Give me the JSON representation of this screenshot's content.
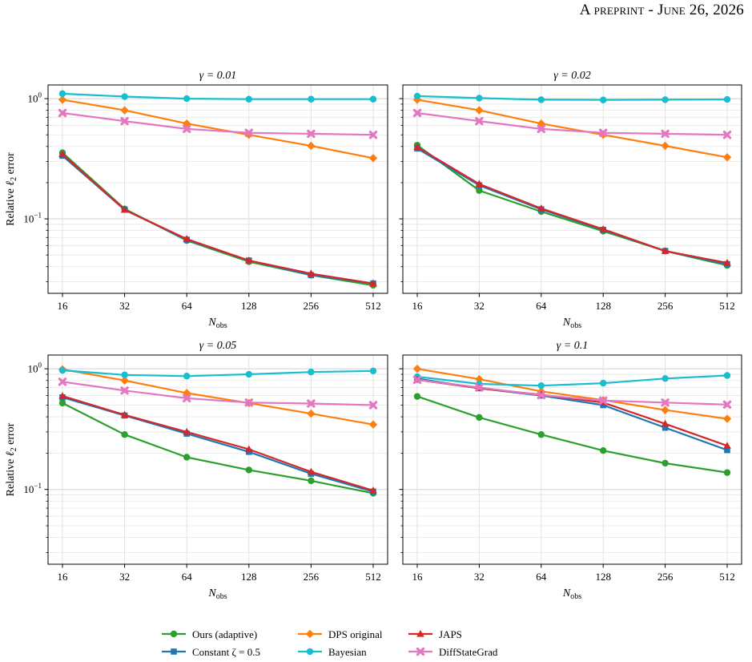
{
  "header": {
    "text": "A preprint - June 26, 2026"
  },
  "chart_data": [
    {
      "type": "line",
      "title": "γ = 0.01",
      "xlabel": "N_obs",
      "ylabel": "Relative ℓ2 error",
      "xscale": "log2",
      "yscale": "log",
      "x": [
        16,
        32,
        64,
        128,
        256,
        512
      ],
      "series": [
        {
          "name": "Ours (adaptive)",
          "color": "#2ca02c",
          "marker": "circle",
          "values": [
            0.355,
            0.121,
            0.066,
            0.044,
            0.034,
            0.028
          ]
        },
        {
          "name": "Constant ζ = 0.5",
          "color": "#1f77b4",
          "marker": "square",
          "values": [
            0.335,
            0.119,
            0.067,
            0.045,
            0.034,
            0.029
          ]
        },
        {
          "name": "DPS original",
          "color": "#ff7f0e",
          "marker": "diamond",
          "values": [
            0.98,
            0.8,
            0.62,
            0.5,
            0.405,
            0.32
          ]
        },
        {
          "name": "Bayesian",
          "color": "#17becf",
          "marker": "circle",
          "values": [
            1.1,
            1.04,
            1.0,
            0.99,
            0.99,
            0.99
          ]
        },
        {
          "name": "JAPS",
          "color": "#d62728",
          "marker": "triangle",
          "values": [
            0.345,
            0.119,
            0.068,
            0.045,
            0.035,
            0.029
          ]
        },
        {
          "name": "DiffStateGrad",
          "color": "#e377c2",
          "marker": "x",
          "values": [
            0.76,
            0.65,
            0.56,
            0.52,
            0.51,
            0.5
          ]
        }
      ],
      "xticks": [
        "16",
        "32",
        "64",
        "128",
        "256",
        "512"
      ],
      "yticks": [
        "10^0",
        "10^-1"
      ],
      "ylim": [
        0.024,
        1.3
      ],
      "grid": true
    },
    {
      "type": "line",
      "title": "γ = 0.02",
      "xlabel": "N_obs",
      "ylabel": "",
      "xscale": "log2",
      "yscale": "log",
      "x": [
        16,
        32,
        64,
        128,
        256,
        512
      ],
      "series": [
        {
          "name": "Ours (adaptive)",
          "color": "#2ca02c",
          "marker": "circle",
          "values": [
            0.41,
            0.172,
            0.115,
            0.079,
            0.054,
            0.041
          ]
        },
        {
          "name": "Constant ζ = 0.5",
          "color": "#1f77b4",
          "marker": "square",
          "values": [
            0.385,
            0.19,
            0.12,
            0.081,
            0.054,
            0.042
          ]
        },
        {
          "name": "DPS original",
          "color": "#ff7f0e",
          "marker": "diamond",
          "values": [
            0.98,
            0.8,
            0.62,
            0.5,
            0.405,
            0.325
          ]
        },
        {
          "name": "Bayesian",
          "color": "#17becf",
          "marker": "circle",
          "values": [
            1.05,
            1.01,
            0.98,
            0.975,
            0.98,
            0.985
          ]
        },
        {
          "name": "JAPS",
          "color": "#d62728",
          "marker": "triangle",
          "values": [
            0.395,
            0.195,
            0.122,
            0.082,
            0.054,
            0.043
          ]
        },
        {
          "name": "DiffStateGrad",
          "color": "#e377c2",
          "marker": "x",
          "values": [
            0.76,
            0.65,
            0.56,
            0.52,
            0.51,
            0.5
          ]
        }
      ],
      "xticks": [
        "16",
        "32",
        "64",
        "128",
        "256",
        "512"
      ],
      "yticks": [
        "10^0",
        "10^-1"
      ],
      "ylim": [
        0.024,
        1.3
      ],
      "grid": true
    },
    {
      "type": "line",
      "title": "γ = 0.05",
      "xlabel": "N_obs",
      "ylabel": "Relative ℓ2 error",
      "xscale": "log2",
      "yscale": "log",
      "x": [
        16,
        32,
        64,
        128,
        256,
        512
      ],
      "series": [
        {
          "name": "Ours (adaptive)",
          "color": "#2ca02c",
          "marker": "circle",
          "values": [
            0.52,
            0.285,
            0.185,
            0.145,
            0.118,
            0.093
          ]
        },
        {
          "name": "Constant ζ = 0.5",
          "color": "#1f77b4",
          "marker": "square",
          "values": [
            0.58,
            0.41,
            0.29,
            0.205,
            0.135,
            0.096
          ]
        },
        {
          "name": "DPS original",
          "color": "#ff7f0e",
          "marker": "diamond",
          "values": [
            0.99,
            0.8,
            0.63,
            0.52,
            0.425,
            0.345
          ]
        },
        {
          "name": "Bayesian",
          "color": "#17becf",
          "marker": "circle",
          "values": [
            0.97,
            0.89,
            0.87,
            0.9,
            0.94,
            0.96
          ]
        },
        {
          "name": "JAPS",
          "color": "#d62728",
          "marker": "triangle",
          "values": [
            0.595,
            0.415,
            0.3,
            0.215,
            0.14,
            0.098
          ]
        },
        {
          "name": "DiffStateGrad",
          "color": "#e377c2",
          "marker": "x",
          "values": [
            0.78,
            0.66,
            0.57,
            0.525,
            0.515,
            0.5
          ]
        }
      ],
      "xticks": [
        "16",
        "32",
        "64",
        "128",
        "256",
        "512"
      ],
      "yticks": [
        "10^0",
        "10^-1"
      ],
      "ylim": [
        0.024,
        1.3
      ],
      "grid": true
    },
    {
      "type": "line",
      "title": "γ = 0.1",
      "xlabel": "N_obs",
      "ylabel": "",
      "xscale": "log2",
      "yscale": "log",
      "x": [
        16,
        32,
        64,
        128,
        256,
        512
      ],
      "series": [
        {
          "name": "Ours (adaptive)",
          "color": "#2ca02c",
          "marker": "circle",
          "values": [
            0.59,
            0.395,
            0.285,
            0.21,
            0.165,
            0.138
          ]
        },
        {
          "name": "Constant ζ = 0.5",
          "color": "#1f77b4",
          "marker": "square",
          "values": [
            0.83,
            0.69,
            0.6,
            0.5,
            0.325,
            0.212
          ]
        },
        {
          "name": "DPS original",
          "color": "#ff7f0e",
          "marker": "diamond",
          "values": [
            1.0,
            0.82,
            0.65,
            0.55,
            0.455,
            0.385
          ]
        },
        {
          "name": "Bayesian",
          "color": "#17becf",
          "marker": "circle",
          "values": [
            0.86,
            0.75,
            0.725,
            0.76,
            0.83,
            0.88
          ]
        },
        {
          "name": "JAPS",
          "color": "#d62728",
          "marker": "triangle",
          "values": [
            0.81,
            0.69,
            0.61,
            0.525,
            0.35,
            0.23
          ]
        },
        {
          "name": "DiffStateGrad",
          "color": "#e377c2",
          "marker": "x",
          "values": [
            0.81,
            0.7,
            0.605,
            0.545,
            0.525,
            0.505
          ]
        }
      ],
      "xticks": [
        "16",
        "32",
        "64",
        "128",
        "256",
        "512"
      ],
      "yticks": [
        "10^0",
        "10^-1"
      ],
      "ylim": [
        0.024,
        1.3
      ],
      "grid": true
    }
  ],
  "legend": {
    "placement": "bottom-center",
    "entries": [
      {
        "label": "Ours (adaptive)",
        "color": "#2ca02c",
        "marker": "circle"
      },
      {
        "label": "Constant ζ = 0.5",
        "color": "#1f77b4",
        "marker": "square"
      },
      {
        "label": "DPS original",
        "color": "#ff7f0e",
        "marker": "diamond"
      },
      {
        "label": "Bayesian",
        "color": "#17becf",
        "marker": "circle"
      },
      {
        "label": "JAPS",
        "color": "#d62728",
        "marker": "triangle"
      },
      {
        "label": "DiffStateGrad",
        "color": "#e377c2",
        "marker": "x"
      }
    ]
  }
}
